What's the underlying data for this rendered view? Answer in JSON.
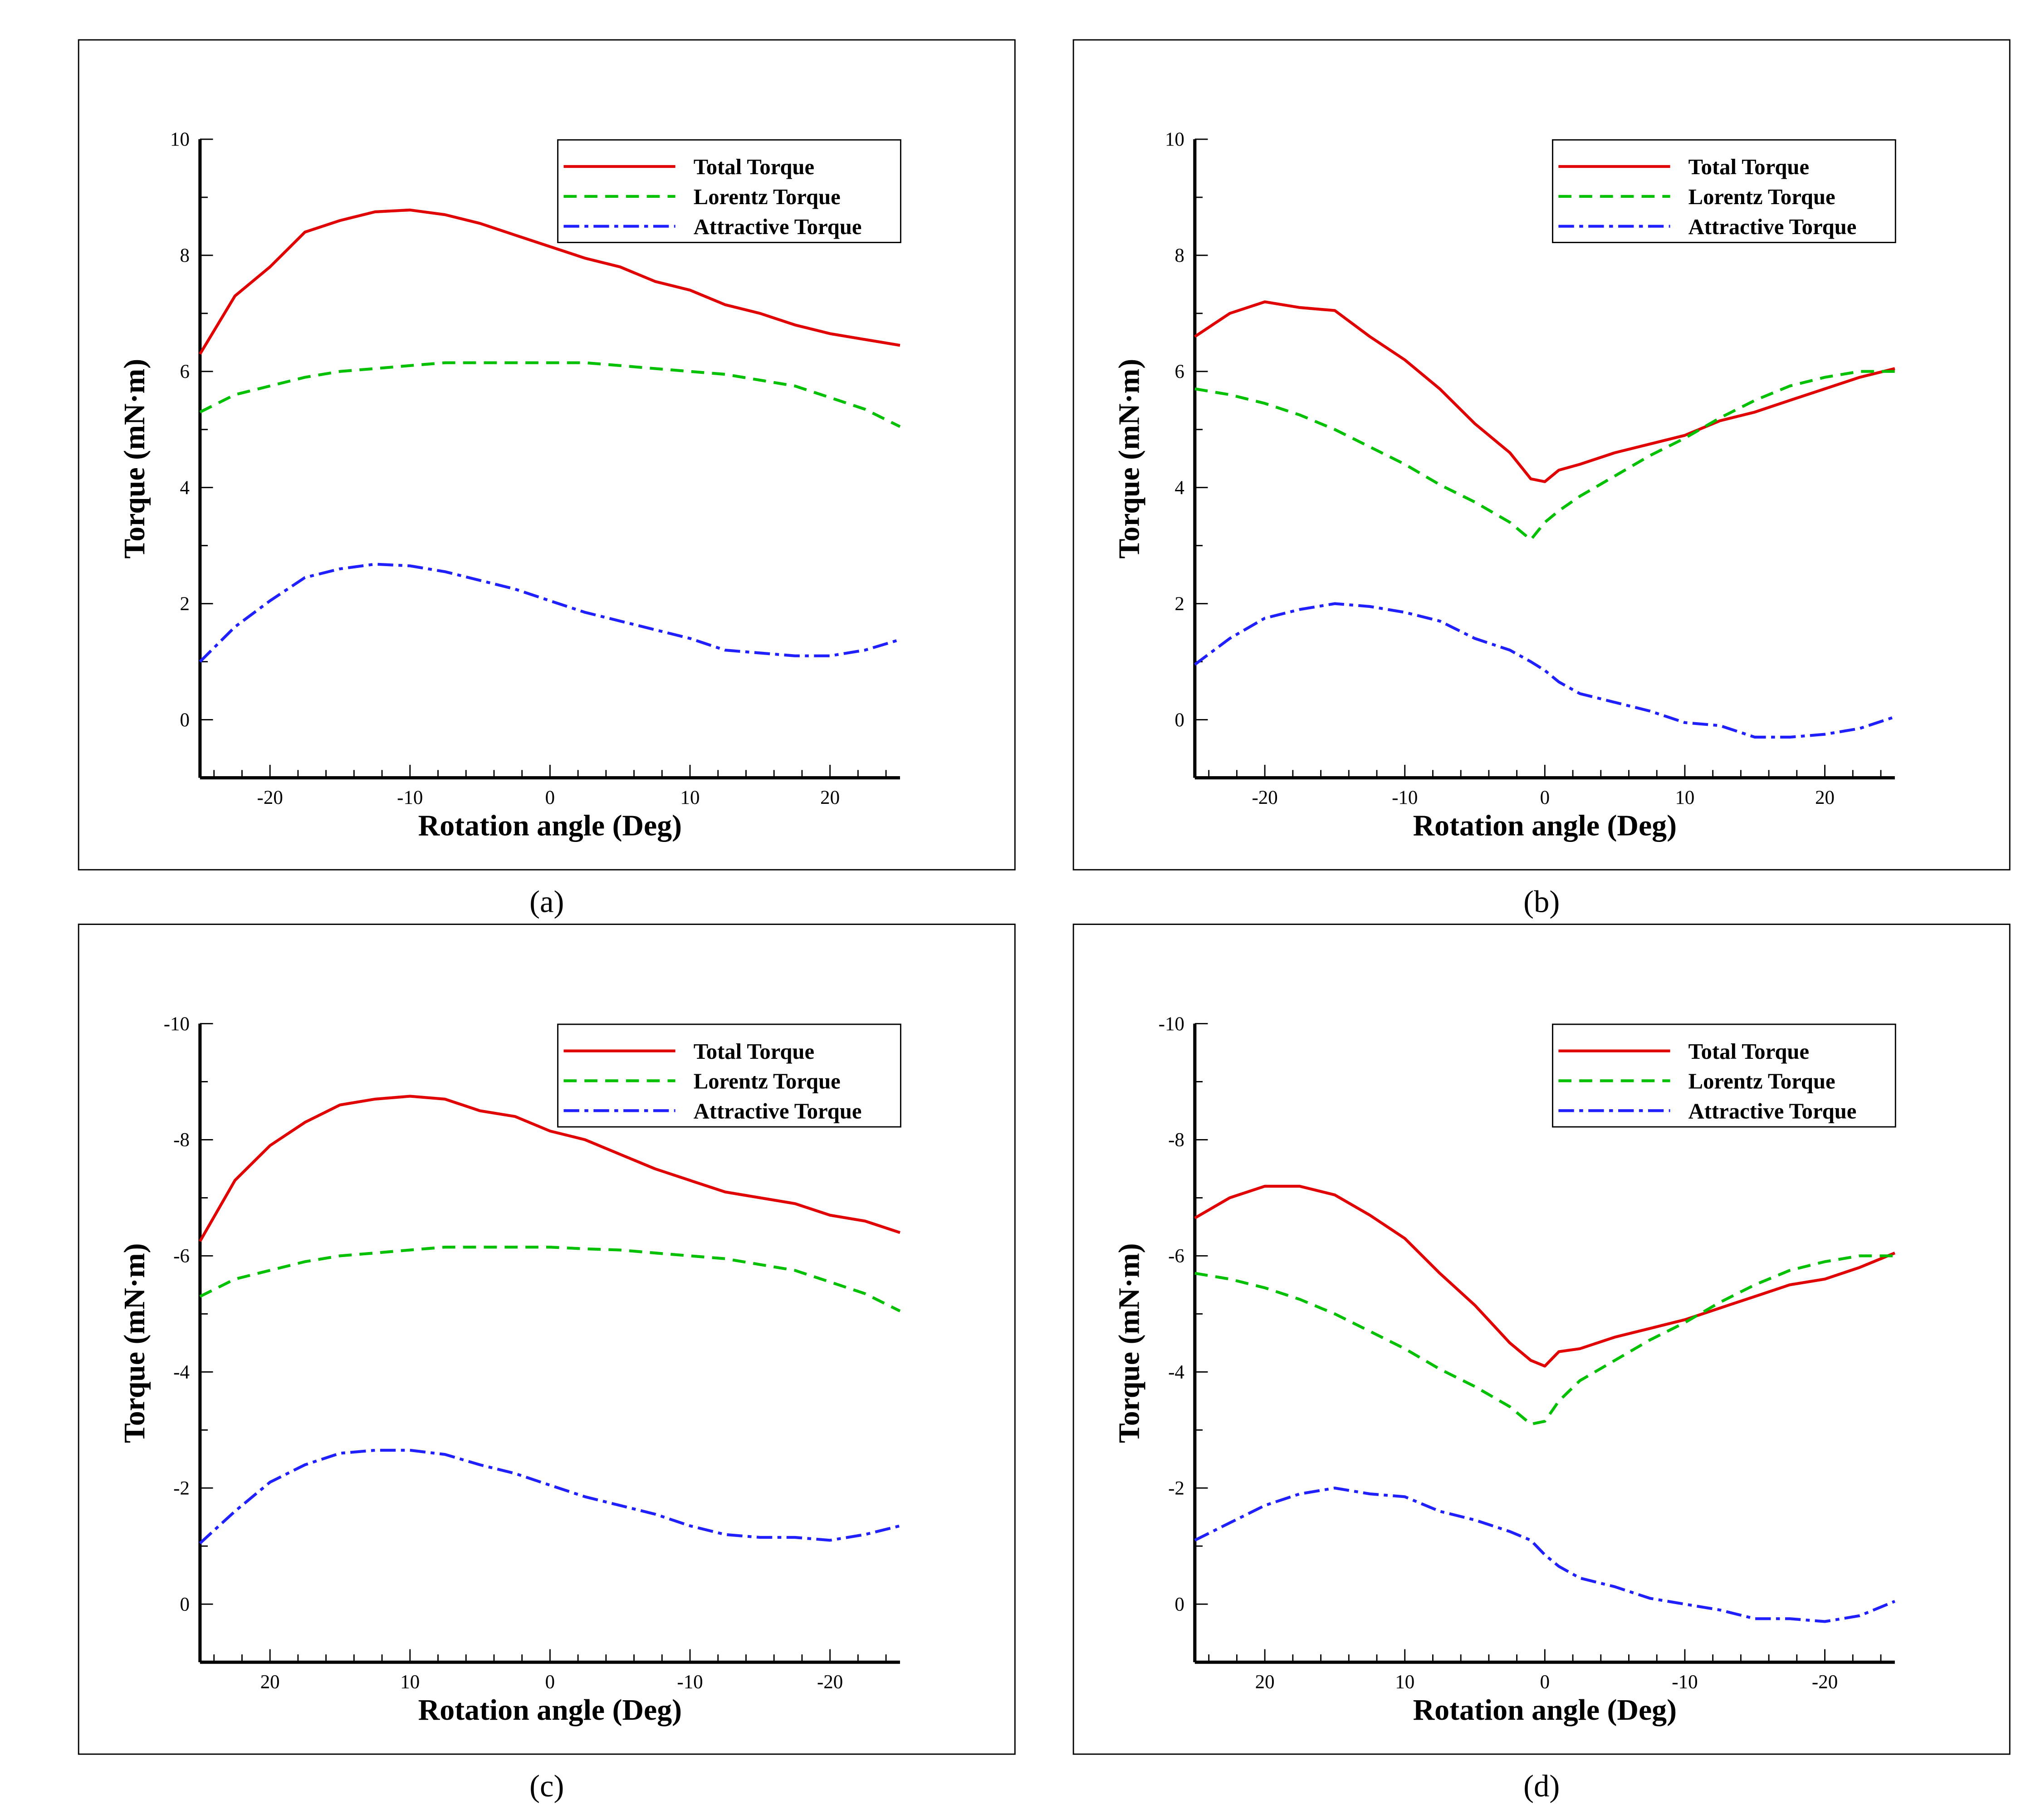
{
  "colors": {
    "total": "#e00000",
    "lorentz": "#00c000",
    "attractive": "#2020ff"
  },
  "chart_data": [
    {
      "type": "line",
      "caption": "(a)",
      "xlabel": "Rotation angle (Deg)",
      "ylabel": "Torque (mN·m)",
      "xlim": [
        -25,
        25
      ],
      "ylim": [
        -1,
        10
      ],
      "xticks": [
        -20,
        -10,
        0,
        10,
        20
      ],
      "xtick_labels": [
        "-20",
        "-10",
        "0",
        "10",
        "20"
      ],
      "yticks": [
        0,
        2,
        4,
        6,
        8,
        10
      ],
      "ytick_labels": [
        "0",
        "2",
        "4",
        "6",
        "8",
        "10"
      ],
      "legend": "top-right",
      "x": [
        -25,
        -22.5,
        -20,
        -17.5,
        -15,
        -12.5,
        -10,
        -7.5,
        -5,
        -2.5,
        0,
        2.5,
        5,
        7.5,
        10,
        12.5,
        15,
        17.5,
        20,
        22.5,
        25
      ],
      "series": [
        {
          "name": "Total Torque",
          "style": "solid",
          "values": [
            6.3,
            7.3,
            7.8,
            8.4,
            8.6,
            8.75,
            8.78,
            8.7,
            8.55,
            8.35,
            8.15,
            7.95,
            7.8,
            7.55,
            7.4,
            7.15,
            7.0,
            6.8,
            6.65,
            6.55,
            6.45
          ]
        },
        {
          "name": "Lorentz Torque",
          "style": "dashed",
          "values": [
            5.3,
            5.6,
            5.75,
            5.9,
            6.0,
            6.05,
            6.1,
            6.15,
            6.15,
            6.15,
            6.15,
            6.15,
            6.1,
            6.05,
            6.0,
            5.95,
            5.85,
            5.75,
            5.55,
            5.35,
            5.05
          ]
        },
        {
          "name": "Attractive Torque",
          "style": "dashdot",
          "values": [
            1.0,
            1.6,
            2.05,
            2.45,
            2.6,
            2.68,
            2.65,
            2.55,
            2.4,
            2.25,
            2.05,
            1.85,
            1.7,
            1.55,
            1.4,
            1.2,
            1.15,
            1.1,
            1.1,
            1.2,
            1.38
          ]
        }
      ]
    },
    {
      "type": "line",
      "caption": "(b)",
      "xlabel": "Rotation angle (Deg)",
      "ylabel": "Torque (mN·m)",
      "xlim": [
        -25,
        25
      ],
      "ylim": [
        -1,
        10
      ],
      "xticks": [
        -20,
        -10,
        0,
        10,
        20
      ],
      "xtick_labels": [
        "-20",
        "-10",
        "0",
        "10",
        "20"
      ],
      "yticks": [
        0,
        2,
        4,
        6,
        8,
        10
      ],
      "ytick_labels": [
        "0",
        "2",
        "4",
        "6",
        "8",
        "10"
      ],
      "legend": "top-right",
      "x": [
        -25,
        -22.5,
        -20,
        -17.5,
        -15,
        -12.5,
        -10,
        -7.5,
        -5,
        -2.5,
        -1,
        0,
        1,
        2.5,
        5,
        7.5,
        10,
        12.5,
        15,
        17.5,
        20,
        22.5,
        25
      ],
      "series": [
        {
          "name": "Total Torque",
          "style": "solid",
          "values": [
            6.6,
            7.0,
            7.2,
            7.1,
            7.05,
            6.6,
            6.2,
            5.7,
            5.1,
            4.6,
            4.15,
            4.1,
            4.3,
            4.4,
            4.6,
            4.75,
            4.9,
            5.15,
            5.3,
            5.5,
            5.7,
            5.9,
            6.05
          ]
        },
        {
          "name": "Lorentz Torque",
          "style": "dashed",
          "values": [
            5.7,
            5.6,
            5.45,
            5.25,
            5.0,
            4.7,
            4.4,
            4.05,
            3.75,
            3.4,
            3.1,
            3.4,
            3.6,
            3.85,
            4.2,
            4.55,
            4.85,
            5.2,
            5.5,
            5.75,
            5.9,
            6.0,
            6.0
          ]
        },
        {
          "name": "Attractive Torque",
          "style": "dashdot",
          "values": [
            0.95,
            1.4,
            1.75,
            1.9,
            2.0,
            1.95,
            1.85,
            1.7,
            1.4,
            1.2,
            1.0,
            0.85,
            0.65,
            0.45,
            0.3,
            0.15,
            -0.05,
            -0.1,
            -0.3,
            -0.3,
            -0.25,
            -0.15,
            0.05
          ]
        }
      ]
    },
    {
      "type": "line",
      "caption": "(c)",
      "xlabel": "Rotation angle (Deg)",
      "ylabel": "Torque (mN·m)",
      "xlim": [
        25,
        -25
      ],
      "ylim": [
        1,
        -10
      ],
      "xticks": [
        20,
        10,
        0,
        -10,
        -20
      ],
      "xtick_labels": [
        "20",
        "10",
        "0",
        "-10",
        "-20"
      ],
      "yticks": [
        0,
        -2,
        -4,
        -6,
        -8,
        -10
      ],
      "ytick_labels": [
        "0",
        "-2",
        "-4",
        "-6",
        "-8",
        "-10"
      ],
      "legend": "top-right",
      "x": [
        25,
        22.5,
        20,
        17.5,
        15,
        12.5,
        10,
        7.5,
        5,
        2.5,
        0,
        -2.5,
        -5,
        -7.5,
        -10,
        -12.5,
        -15,
        -17.5,
        -20,
        -22.5,
        -25
      ],
      "series": [
        {
          "name": "Total Torque",
          "style": "solid",
          "values": [
            -6.25,
            -7.3,
            -7.9,
            -8.3,
            -8.6,
            -8.7,
            -8.75,
            -8.7,
            -8.5,
            -8.4,
            -8.15,
            -8.0,
            -7.75,
            -7.5,
            -7.3,
            -7.1,
            -7.0,
            -6.9,
            -6.7,
            -6.6,
            -6.4
          ]
        },
        {
          "name": "Lorentz Torque",
          "style": "dashed",
          "values": [
            -5.3,
            -5.6,
            -5.75,
            -5.9,
            -6.0,
            -6.05,
            -6.1,
            -6.15,
            -6.15,
            -6.15,
            -6.15,
            -6.12,
            -6.1,
            -6.05,
            -6.0,
            -5.95,
            -5.85,
            -5.75,
            -5.55,
            -5.35,
            -5.05
          ]
        },
        {
          "name": "Attractive Torque",
          "style": "dashdot",
          "values": [
            -1.05,
            -1.6,
            -2.1,
            -2.4,
            -2.6,
            -2.65,
            -2.65,
            -2.58,
            -2.4,
            -2.25,
            -2.05,
            -1.85,
            -1.7,
            -1.55,
            -1.35,
            -1.2,
            -1.15,
            -1.15,
            -1.1,
            -1.2,
            -1.35
          ]
        }
      ]
    },
    {
      "type": "line",
      "caption": "(d)",
      "xlabel": "Rotation angle (Deg)",
      "ylabel": "Torque (mN·m)",
      "xlim": [
        25,
        -25
      ],
      "ylim": [
        1,
        -10
      ],
      "xticks": [
        20,
        10,
        0,
        -10,
        -20
      ],
      "xtick_labels": [
        "20",
        "10",
        "0",
        "-10",
        "-20"
      ],
      "yticks": [
        0,
        -2,
        -4,
        -6,
        -8,
        -10
      ],
      "ytick_labels": [
        "0",
        "-2",
        "-4",
        "-6",
        "-8",
        "-10"
      ],
      "legend": "top-right",
      "x": [
        25,
        22.5,
        20,
        17.5,
        15,
        12.5,
        10,
        7.5,
        5,
        2.5,
        1,
        0,
        -1,
        -2.5,
        -5,
        -7.5,
        -10,
        -12.5,
        -15,
        -17.5,
        -20,
        -22.5,
        -25
      ],
      "series": [
        {
          "name": "Total Torque",
          "style": "solid",
          "values": [
            -6.65,
            -7.0,
            -7.2,
            -7.2,
            -7.05,
            -6.7,
            -6.3,
            -5.7,
            -5.15,
            -4.5,
            -4.2,
            -4.1,
            -4.35,
            -4.4,
            -4.6,
            -4.75,
            -4.9,
            -5.1,
            -5.3,
            -5.5,
            -5.6,
            -5.8,
            -6.05
          ]
        },
        {
          "name": "Lorentz Torque",
          "style": "dashed",
          "values": [
            -5.7,
            -5.6,
            -5.45,
            -5.25,
            -5.0,
            -4.7,
            -4.4,
            -4.05,
            -3.75,
            -3.4,
            -3.1,
            -3.15,
            -3.5,
            -3.85,
            -4.2,
            -4.55,
            -4.85,
            -5.2,
            -5.5,
            -5.75,
            -5.9,
            -6.0,
            -6.0
          ]
        },
        {
          "name": "Attractive Torque",
          "style": "dashdot",
          "values": [
            -1.1,
            -1.4,
            -1.7,
            -1.9,
            -2.0,
            -1.9,
            -1.85,
            -1.6,
            -1.45,
            -1.25,
            -1.1,
            -0.85,
            -0.65,
            -0.45,
            -0.3,
            -0.1,
            0.0,
            0.1,
            0.25,
            0.25,
            0.3,
            0.2,
            -0.05
          ]
        }
      ]
    }
  ]
}
